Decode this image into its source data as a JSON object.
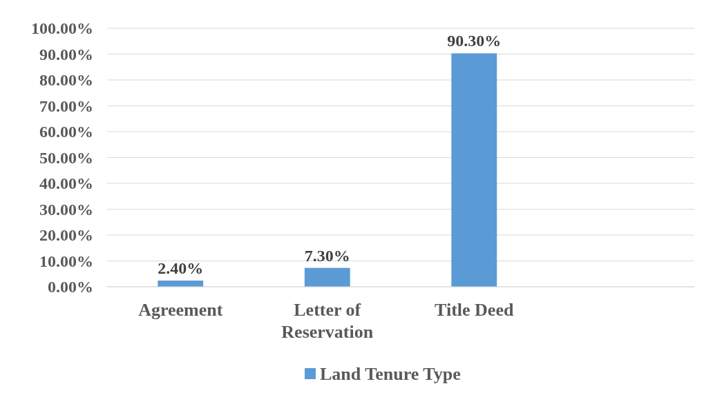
{
  "chart_data": {
    "type": "bar",
    "categories": [
      "Agreement",
      "Letter of Reservation",
      "Title Deed",
      null
    ],
    "series": [
      {
        "name": "Land Tenure Type",
        "color": "#5b9bd5",
        "values": [
          2.4,
          7.3,
          90.3,
          null
        ],
        "value_labels": [
          "2.40%",
          "7.30%",
          "90.30%",
          null
        ]
      }
    ],
    "ylim": [
      0,
      100
    ],
    "yticks": [
      {
        "value": 0,
        "label": "0.00%"
      },
      {
        "value": 10,
        "label": "10.00%"
      },
      {
        "value": 20,
        "label": "20.00%"
      },
      {
        "value": 30,
        "label": "30.00%"
      },
      {
        "value": 40,
        "label": "40.00%"
      },
      {
        "value": 50,
        "label": "50.00%"
      },
      {
        "value": 60,
        "label": "60.00%"
      },
      {
        "value": 70,
        "label": "70.00%"
      },
      {
        "value": 80,
        "label": "80.00%"
      },
      {
        "value": 90,
        "label": "90.00%"
      },
      {
        "value": 100,
        "label": "100.00%"
      }
    ],
    "grid": "y",
    "legend": "bottom"
  }
}
